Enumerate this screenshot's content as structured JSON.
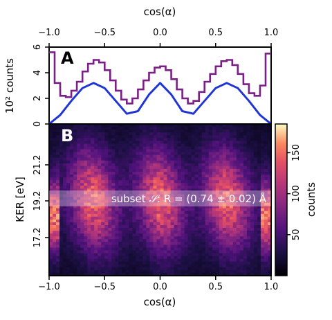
{
  "chart_data": [
    {
      "panel": "A",
      "type": "line",
      "xlabel": "cos(α)",
      "ylabel": "10² counts",
      "xlim": [
        -1.0,
        1.0
      ],
      "ylim": [
        0,
        6
      ],
      "x_ticks": [
        "−1.0",
        "−0.5",
        "0.0",
        "0.5",
        "1.0"
      ],
      "y_ticks": [
        "0",
        "2",
        "4",
        "6"
      ],
      "series": [
        {
          "style": "step histogram",
          "color": "#7a1f86",
          "x": [
            -0.975,
            -0.925,
            -0.875,
            -0.825,
            -0.775,
            -0.725,
            -0.675,
            -0.625,
            -0.575,
            -0.525,
            -0.475,
            -0.425,
            -0.375,
            -0.325,
            -0.275,
            -0.225,
            -0.175,
            -0.125,
            -0.075,
            -0.025,
            0.025,
            0.075,
            0.125,
            0.175,
            0.225,
            0.275,
            0.325,
            0.375,
            0.425,
            0.475,
            0.525,
            0.575,
            0.625,
            0.675,
            0.725,
            0.775,
            0.825,
            0.875,
            0.925,
            0.975
          ],
          "values": [
            5.6,
            3.2,
            2.2,
            2.1,
            2.6,
            3.3,
            4.1,
            4.7,
            5.0,
            4.8,
            4.2,
            3.4,
            2.6,
            1.9,
            1.6,
            2.0,
            2.7,
            3.4,
            4.0,
            4.4,
            4.5,
            4.2,
            3.5,
            2.7,
            2.0,
            1.6,
            1.8,
            2.5,
            3.3,
            3.9,
            4.5,
            4.9,
            5.0,
            4.6,
            3.9,
            3.1,
            2.4,
            2.2,
            3.0,
            5.5
          ]
        },
        {
          "style": "model curve",
          "color": "#1f35d6",
          "x": [
            -1.0,
            -0.9,
            -0.8,
            -0.7,
            -0.6,
            -0.5,
            -0.4,
            -0.3,
            -0.2,
            -0.1,
            0.0,
            0.1,
            0.2,
            0.3,
            0.4,
            0.5,
            0.6,
            0.7,
            0.8,
            0.9,
            1.0
          ],
          "values": [
            0.0,
            0.7,
            1.8,
            2.8,
            3.2,
            2.8,
            1.8,
            0.8,
            1.0,
            2.3,
            3.2,
            2.3,
            1.0,
            0.8,
            1.8,
            2.8,
            3.2,
            2.8,
            1.8,
            0.7,
            0.0
          ]
        }
      ]
    },
    {
      "panel": "B",
      "type": "heatmap",
      "xlabel": "cos(α)",
      "ylabel": "KER [eV]",
      "xlim": [
        -1.0,
        1.0
      ],
      "x_ticks": [
        "−1.0",
        "−0.5",
        "0.0",
        "0.5",
        "1.0"
      ],
      "y_ticks": [
        "21.2",
        "19.2",
        "17.2"
      ],
      "colorbar": {
        "label": "counts",
        "ticks": [
          "50",
          "100",
          "150"
        ],
        "range": [
          0,
          185
        ],
        "colormap": "magma"
      },
      "annotation": {
        "prefix": "subset ",
        "symbol": "𝒮",
        "suffix": ": R = (0.74 ± 0.02) Å"
      }
    }
  ],
  "panel_letters": {
    "a": "A",
    "b": "B"
  }
}
